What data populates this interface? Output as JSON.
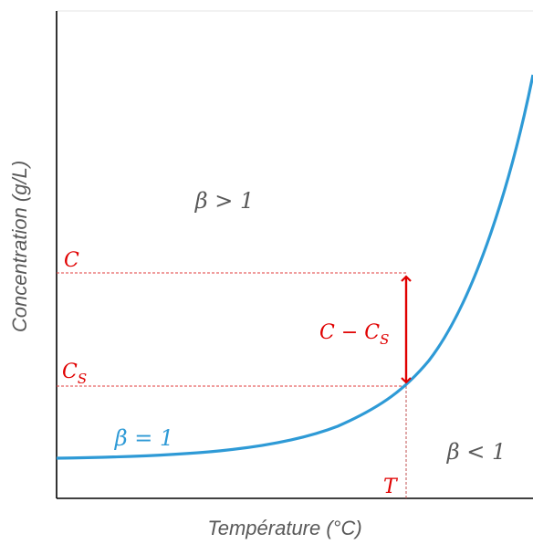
{
  "axes": {
    "y_label": "Concentration (g/L)",
    "x_label": "Température (°C)"
  },
  "annotations": {
    "supersaturated_region": "β > 1",
    "saturation_curve": "β = 1",
    "undersaturated_region": "β < 1",
    "concentration_marker": "C",
    "saturation_concentration_base": "C",
    "saturation_concentration_sub": "S",
    "difference_part1": "C − C",
    "difference_sub": "S",
    "temperature_marker": "T"
  },
  "colors": {
    "axis": "#000000",
    "curve": "#2e9ad6",
    "annotation_red": "#e00000",
    "region_text": "#595959",
    "axis_label_text": "#595959"
  }
}
